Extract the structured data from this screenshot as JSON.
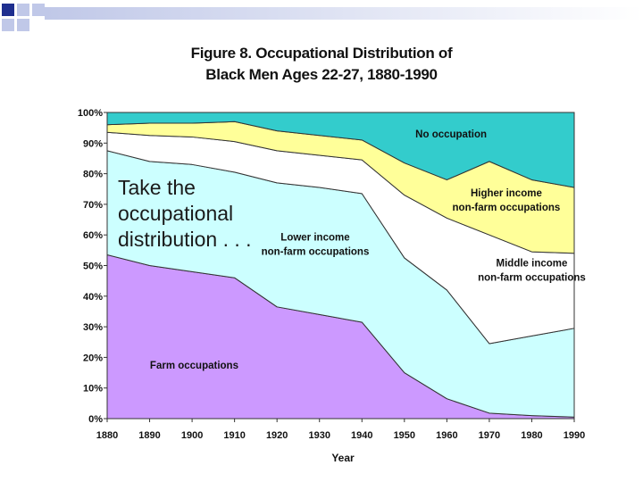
{
  "slide": {
    "title_line1": "Figure 8.  Occupational Distribution of",
    "title_line2": "Black Men Ages 22-27, 1880-1990",
    "overlay_text": "Take the\noccupational\ndistribution . . .",
    "deco_colors": [
      "#1f2f8f",
      "#c0c8e8"
    ]
  },
  "chart_data": {
    "type": "area",
    "stacking": "stacked-percent",
    "title": "Figure 8.  Occupational Distribution of Black Men Ages 22-27, 1880-1990",
    "xlabel": "Year",
    "ylabel": "",
    "x": [
      1880,
      1890,
      1900,
      1910,
      1920,
      1930,
      1940,
      1950,
      1960,
      1970,
      1980,
      1990
    ],
    "xticks": [
      "1880",
      "1890",
      "1900",
      "1910",
      "1920",
      "1930",
      "1940",
      "1950",
      "1960",
      "1970",
      "1980",
      "1990"
    ],
    "yticks": [
      "0%",
      "10%",
      "20%",
      "30%",
      "40%",
      "50%",
      "60%",
      "70%",
      "80%",
      "90%",
      "100%"
    ],
    "ylim": [
      0,
      100
    ],
    "series": [
      {
        "name": "Farm occupations",
        "label_lines": [
          "Farm occupations"
        ],
        "color": "#cc99ff",
        "cumulative": [
          53.5,
          50,
          48,
          46,
          36.5,
          34,
          31.5,
          15,
          6.5,
          1.8,
          1,
          0.5
        ],
        "label_at": [
          1900.5,
          17.5
        ]
      },
      {
        "name": "Lower income non-farm occupations",
        "label_lines": [
          "Lower income",
          "non-farm occupations"
        ],
        "color": "#ccffff",
        "cumulative": [
          87.5,
          84,
          83,
          80.5,
          77,
          75.5,
          73.5,
          52.5,
          42,
          24.5,
          27,
          29.5
        ],
        "label_at": [
          1929,
          57
        ]
      },
      {
        "name": "Middle income non-farm occupations",
        "label_lines": [
          "Middle income",
          "non-farm occupations"
        ],
        "color": "#ffffff",
        "cumulative": [
          93.5,
          92.5,
          92,
          90.5,
          87.5,
          86,
          84.5,
          73,
          65.5,
          60,
          54.5,
          54
        ],
        "label_at": [
          1980,
          48.5
        ]
      },
      {
        "name": "Higher income non-farm occupations",
        "label_lines": [
          "Higher income",
          "non-farm occupations"
        ],
        "color": "#ffff99",
        "cumulative": [
          96,
          96.5,
          96.5,
          97,
          94,
          92.5,
          91,
          83.5,
          78,
          84,
          78,
          75.5
        ],
        "label_at": [
          1974,
          71.5
        ]
      },
      {
        "name": "No occupation",
        "label_lines": [
          "No occupation"
        ],
        "color": "#33cccc",
        "cumulative": [
          100,
          100,
          100,
          100,
          100,
          100,
          100,
          100,
          100,
          100,
          100,
          100
        ],
        "label_at": [
          1961,
          93
        ]
      }
    ]
  }
}
